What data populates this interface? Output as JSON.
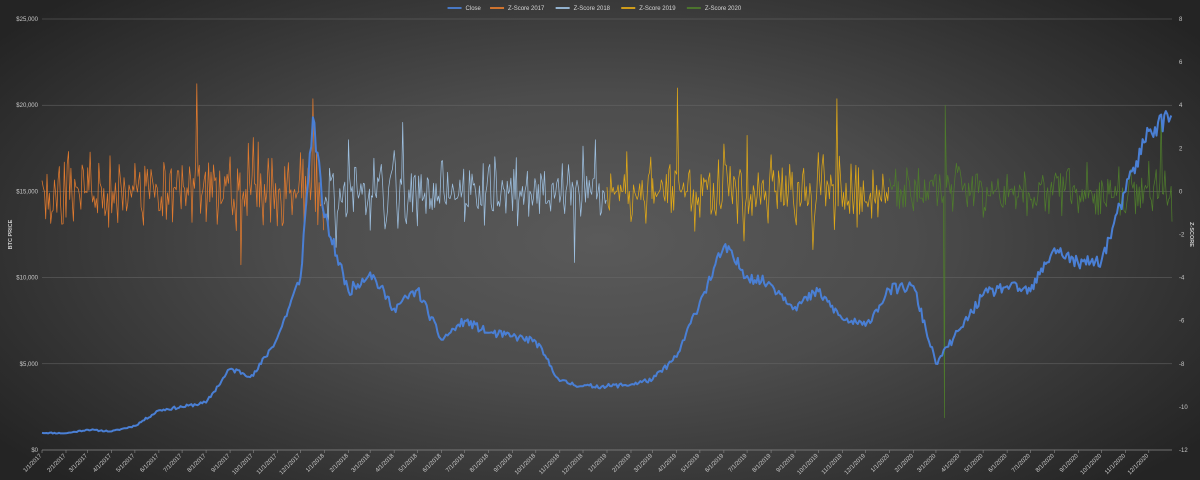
{
  "chart_data": {
    "type": "line",
    "title": "",
    "ylabel": "BTC PRICE",
    "y2label": "Z-SCORE",
    "legend_position": "top-center",
    "grid": true,
    "ylim": [
      0,
      25000
    ],
    "y2lim": [
      -12,
      8
    ],
    "y_ticks": [
      "$0",
      "$5,000",
      "$10,000",
      "$15,000",
      "$20,000",
      "$25,000"
    ],
    "y2_ticks": [
      "-12",
      "-10",
      "-8",
      "-6",
      "-4",
      "-2",
      "0",
      "2",
      "4",
      "6",
      "8"
    ],
    "x_ticks": [
      "1/1/2017",
      "2/1/2017",
      "3/1/2017",
      "4/1/2017",
      "5/1/2017",
      "6/1/2017",
      "7/1/2017",
      "8/1/2017",
      "9/1/2017",
      "10/1/2017",
      "11/1/2017",
      "12/1/2017",
      "1/1/2018",
      "2/1/2018",
      "3/1/2018",
      "4/1/2018",
      "5/1/2018",
      "6/1/2018",
      "7/1/2018",
      "8/1/2018",
      "9/1/2018",
      "10/1/2018",
      "11/1/2018",
      "12/1/2018",
      "1/1/2019",
      "2/1/2019",
      "3/1/2019",
      "4/1/2019",
      "5/1/2019",
      "6/1/2019",
      "7/1/2019",
      "8/1/2019",
      "9/1/2019",
      "10/1/2019",
      "11/1/2019",
      "12/1/2019",
      "1/1/2020",
      "2/1/2020",
      "3/1/2020",
      "4/1/2020",
      "5/1/2020",
      "6/1/2020",
      "7/1/2020",
      "8/1/2020",
      "9/1/2020",
      "10/1/2020",
      "11/1/2020",
      "12/1/2020"
    ],
    "series": [
      {
        "name": "Close",
        "axis": "left",
        "color": "#4a7fd4",
        "x": [
          "1/1/2017",
          "2/1/2017",
          "3/1/2017",
          "4/1/2017",
          "5/1/2017",
          "6/1/2017",
          "7/1/2017",
          "8/1/2017",
          "9/1/2017",
          "10/1/2017",
          "11/1/2017",
          "12/1/2017",
          "12/17/2017",
          "1/1/2018",
          "2/1/2018",
          "3/1/2018",
          "4/1/2018",
          "5/1/2018",
          "6/1/2018",
          "7/1/2018",
          "8/1/2018",
          "9/1/2018",
          "10/1/2018",
          "11/1/2018",
          "12/1/2018",
          "1/1/2019",
          "2/1/2019",
          "3/1/2019",
          "4/1/2019",
          "5/1/2019",
          "6/1/2019",
          "7/1/2019",
          "8/1/2019",
          "9/1/2019",
          "10/1/2019",
          "11/1/2019",
          "12/1/2019",
          "1/1/2020",
          "2/1/2020",
          "3/1/2020",
          "4/1/2020",
          "5/1/2020",
          "6/1/2020",
          "7/1/2020",
          "8/1/2020",
          "9/1/2020",
          "10/1/2020",
          "11/1/2020",
          "12/1/2020",
          "12/30/2020"
        ],
        "values": [
          1000,
          970,
          1180,
          1080,
          1400,
          2300,
          2500,
          2750,
          4700,
          4300,
          6500,
          10000,
          19300,
          13500,
          9200,
          10300,
          8200,
          9300,
          6400,
          7500,
          6800,
          6600,
          6300,
          4000,
          3700,
          3700,
          3800,
          4100,
          5400,
          8600,
          11800,
          10100,
          9600,
          8300,
          9200,
          7600,
          7200,
          9300,
          9500,
          5000,
          7000,
          9000,
          9500,
          9200,
          11700,
          10800,
          11000,
          15000,
          18500,
          19400
        ]
      },
      {
        "name": "Z-Score 2017",
        "axis": "right",
        "color": "#e07a2e",
        "x": [
          "1/1/2017",
          "2/1/2017",
          "3/1/2017",
          "4/1/2017",
          "5/1/2017",
          "6/1/2017",
          "7/1/2017",
          "7/20/2017",
          "8/1/2017",
          "9/1/2017",
          "9/15/2017",
          "10/1/2017",
          "11/1/2017",
          "12/1/2017",
          "12/17/2017",
          "12/31/2017"
        ],
        "values": [
          0.5,
          -1.2,
          1.1,
          -1.0,
          1.3,
          -0.9,
          1.2,
          5.0,
          -1.4,
          1.6,
          -3.4,
          2.5,
          -1.6,
          1.8,
          4.3,
          -1.8
        ]
      },
      {
        "name": "Z-Score 2018",
        "axis": "right",
        "color": "#9dbfdf",
        "x": [
          "1/1/2018",
          "1/16/2018",
          "2/1/2018",
          "3/1/2018",
          "4/1/2018",
          "4/12/2018",
          "5/1/2018",
          "6/1/2018",
          "7/1/2018",
          "8/1/2018",
          "9/1/2018",
          "10/1/2018",
          "11/1/2018",
          "11/20/2018",
          "12/1/2018",
          "12/17/2018",
          "12/31/2018"
        ],
        "values": [
          -0.6,
          -2.6,
          2.4,
          -1.8,
          1.9,
          3.2,
          -1.6,
          1.4,
          -1.4,
          1.1,
          -0.9,
          0.4,
          -0.5,
          -3.3,
          2.1,
          2.4,
          -0.4
        ]
      },
      {
        "name": "Z-Score 2019",
        "axis": "right",
        "color": "#e0a817",
        "x": [
          "1/1/2019",
          "2/1/2019",
          "3/1/2019",
          "4/1/2019",
          "4/2/2019",
          "5/1/2019",
          "6/1/2019",
          "6/27/2019",
          "7/1/2019",
          "8/1/2019",
          "9/1/2019",
          "9/24/2019",
          "10/1/2019",
          "10/25/2019",
          "11/1/2019",
          "12/1/2019",
          "12/31/2019"
        ],
        "values": [
          0.2,
          -1.4,
          0.6,
          0.8,
          4.8,
          -1.2,
          2.2,
          -2.3,
          2.6,
          1.7,
          -1.2,
          -2.7,
          1.8,
          4.3,
          -0.7,
          -0.5,
          0.2
        ]
      },
      {
        "name": "Z-Score 2020",
        "axis": "right",
        "color": "#4e7b2c",
        "x": [
          "1/1/2020",
          "2/1/2020",
          "3/1/2020",
          "3/12/2020",
          "3/13/2020",
          "4/1/2020",
          "5/1/2020",
          "6/1/2020",
          "7/1/2020",
          "8/1/2020",
          "9/1/2020",
          "10/1/2020",
          "11/1/2020",
          "12/1/2020",
          "12/17/2020",
          "12/31/2020"
        ],
        "values": [
          0.6,
          -0.9,
          0.8,
          -10.5,
          4.0,
          1.0,
          -1.2,
          0.8,
          -0.4,
          0.6,
          -1.0,
          0.5,
          -1.0,
          1.4,
          3.5,
          -1.4
        ]
      }
    ]
  }
}
